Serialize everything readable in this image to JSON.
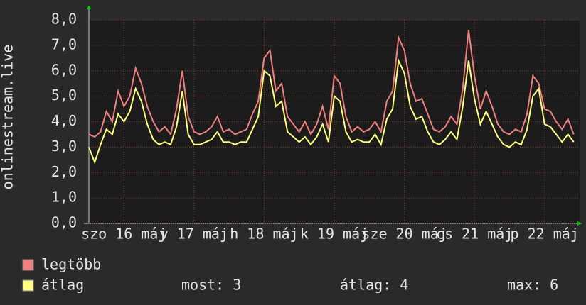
{
  "chart_data": {
    "type": "line",
    "y_label": "onlinestream.live",
    "xlim": [
      0,
      168
    ],
    "xticks": [
      {
        "value": 12,
        "label": "szo 16 máj"
      },
      {
        "value": 36,
        "label": "v 17 máj"
      },
      {
        "value": 60,
        "label": "h 18 máj"
      },
      {
        "value": 84,
        "label": "k 19 máj"
      },
      {
        "value": 108,
        "label": "sze 20 máj"
      },
      {
        "value": 132,
        "label": "cs 21 máj"
      },
      {
        "value": 156,
        "label": "p 22 máj"
      }
    ],
    "ylim": [
      0,
      8
    ],
    "yticks": [
      {
        "value": 0,
        "label": "0,0"
      },
      {
        "value": 1,
        "label": "1,0"
      },
      {
        "value": 2,
        "label": "2,0"
      },
      {
        "value": 3,
        "label": "3,0"
      },
      {
        "value": 4,
        "label": "4,0"
      },
      {
        "value": 5,
        "label": "5,0"
      },
      {
        "value": 6,
        "label": "6,0"
      },
      {
        "value": 7,
        "label": "7,0"
      },
      {
        "value": 8,
        "label": "8,0"
      }
    ],
    "grid": true,
    "x": [
      0,
      2,
      4,
      6,
      8,
      10,
      12,
      14,
      16,
      18,
      20,
      22,
      24,
      26,
      28,
      30,
      32,
      34,
      36,
      38,
      40,
      42,
      44,
      46,
      48,
      50,
      52,
      54,
      56,
      58,
      60,
      62,
      64,
      66,
      68,
      70,
      72,
      74,
      76,
      78,
      80,
      82,
      84,
      86,
      88,
      90,
      92,
      94,
      96,
      98,
      100,
      102,
      104,
      106,
      108,
      110,
      112,
      114,
      116,
      118,
      120,
      122,
      124,
      126,
      128,
      130,
      132,
      134,
      136,
      138,
      140,
      142,
      144,
      146,
      148,
      150,
      152,
      154,
      156,
      158,
      160,
      162,
      164,
      166
    ],
    "series": [
      {
        "name": "legtöbb",
        "color": "#f08080",
        "values": [
          3.5,
          3.4,
          3.6,
          4.4,
          4.0,
          5.2,
          4.6,
          5.0,
          6.1,
          5.5,
          4.6,
          4.0,
          3.6,
          3.8,
          3.5,
          4.5,
          6.0,
          4.2,
          3.6,
          3.5,
          3.6,
          3.8,
          4.2,
          3.6,
          3.7,
          3.5,
          3.6,
          3.7,
          4.3,
          4.8,
          6.5,
          6.8,
          5.2,
          5.5,
          4.2,
          3.9,
          3.6,
          4.0,
          3.5,
          3.9,
          4.6,
          3.7,
          5.8,
          5.5,
          4.2,
          3.6,
          3.8,
          3.6,
          3.7,
          4.0,
          3.6,
          4.8,
          5.2,
          7.3,
          6.8,
          5.5,
          4.8,
          4.9,
          4.3,
          3.7,
          3.6,
          3.8,
          4.2,
          3.9,
          5.3,
          7.6,
          5.8,
          4.5,
          5.2,
          4.6,
          3.9,
          3.6,
          3.5,
          3.7,
          3.6,
          4.3,
          5.8,
          5.5,
          4.5,
          4.4,
          4.0,
          3.7,
          4.1,
          3.5
        ]
      },
      {
        "name": "átlag",
        "color": "#ffff80",
        "values": [
          3.0,
          2.4,
          3.1,
          3.7,
          3.5,
          4.3,
          4.0,
          4.4,
          5.3,
          4.8,
          3.9,
          3.3,
          3.1,
          3.2,
          3.1,
          3.8,
          5.2,
          3.5,
          3.1,
          3.1,
          3.2,
          3.3,
          3.6,
          3.2,
          3.2,
          3.1,
          3.2,
          3.2,
          3.7,
          4.2,
          6.0,
          5.8,
          4.6,
          4.8,
          3.6,
          3.4,
          3.2,
          3.4,
          3.1,
          3.4,
          3.9,
          3.2,
          5.0,
          4.8,
          3.6,
          3.2,
          3.3,
          3.2,
          3.2,
          3.5,
          3.1,
          4.1,
          4.5,
          6.4,
          5.9,
          4.6,
          4.1,
          4.2,
          3.6,
          3.2,
          3.1,
          3.3,
          3.6,
          3.3,
          4.6,
          6.4,
          4.9,
          3.9,
          4.4,
          3.9,
          3.4,
          3.1,
          3.0,
          3.2,
          3.1,
          3.7,
          5.0,
          5.3,
          3.9,
          3.8,
          3.5,
          3.2,
          3.5,
          3.2
        ]
      }
    ],
    "stats": [
      {
        "label": "most:",
        "value": 3
      },
      {
        "label": "átlag:",
        "value": 4
      },
      {
        "label": "max:",
        "value": 6
      }
    ]
  }
}
